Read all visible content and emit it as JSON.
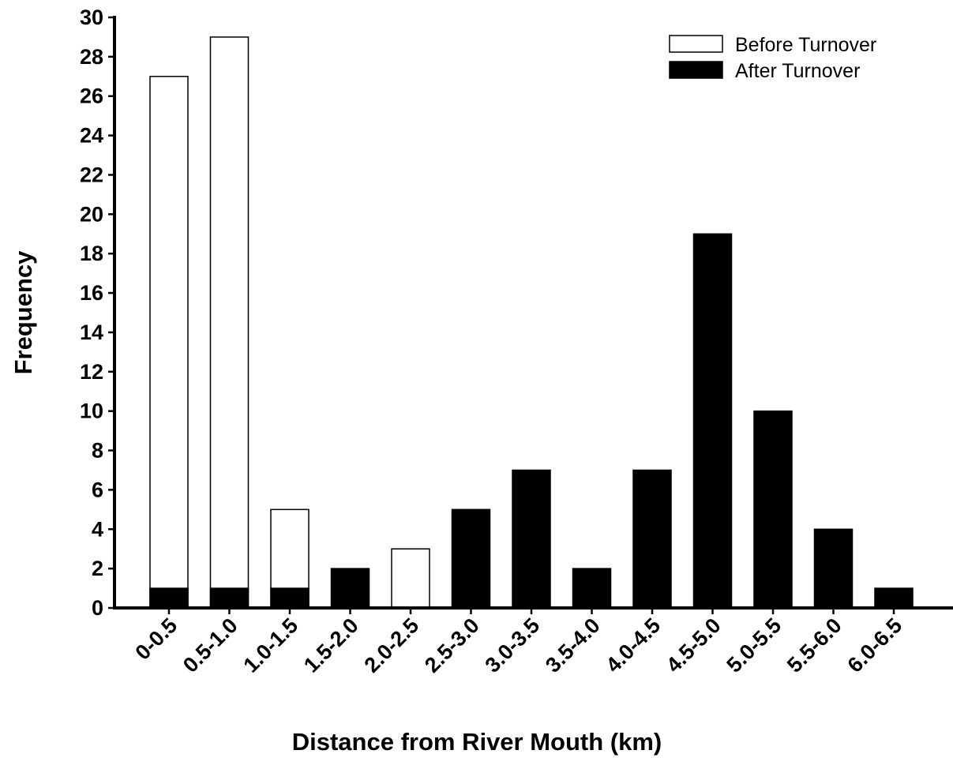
{
  "chart_data": {
    "type": "bar",
    "title": "",
    "xlabel": "Distance from River Mouth (km)",
    "ylabel": "Frequency",
    "ylim": [
      0,
      30
    ],
    "yticks": [
      0,
      2,
      4,
      6,
      8,
      10,
      12,
      14,
      16,
      18,
      20,
      22,
      24,
      26,
      28,
      30
    ],
    "categories": [
      "0-0.5",
      "0.5-1.0",
      "1.0-1.5",
      "1.5-2.0",
      "2.0-2.5",
      "2.5-3.0",
      "3.0-3.5",
      "3.5-4.0",
      "4.0-4.5",
      "4.5-5.0",
      "5.0-5.5",
      "5.5-6.0",
      "6.0-6.5"
    ],
    "series": [
      {
        "name": "Before Turnover",
        "color": "#ffffff",
        "values": [
          27,
          29,
          5,
          0,
          3,
          0,
          0,
          0,
          0,
          0,
          0,
          0,
          0
        ]
      },
      {
        "name": "After Turnover",
        "color": "#000000",
        "values": [
          1,
          1,
          1,
          2,
          0,
          5,
          7,
          2,
          7,
          19,
          10,
          4,
          1
        ]
      }
    ],
    "legend_position": "top-right",
    "grid": false
  }
}
